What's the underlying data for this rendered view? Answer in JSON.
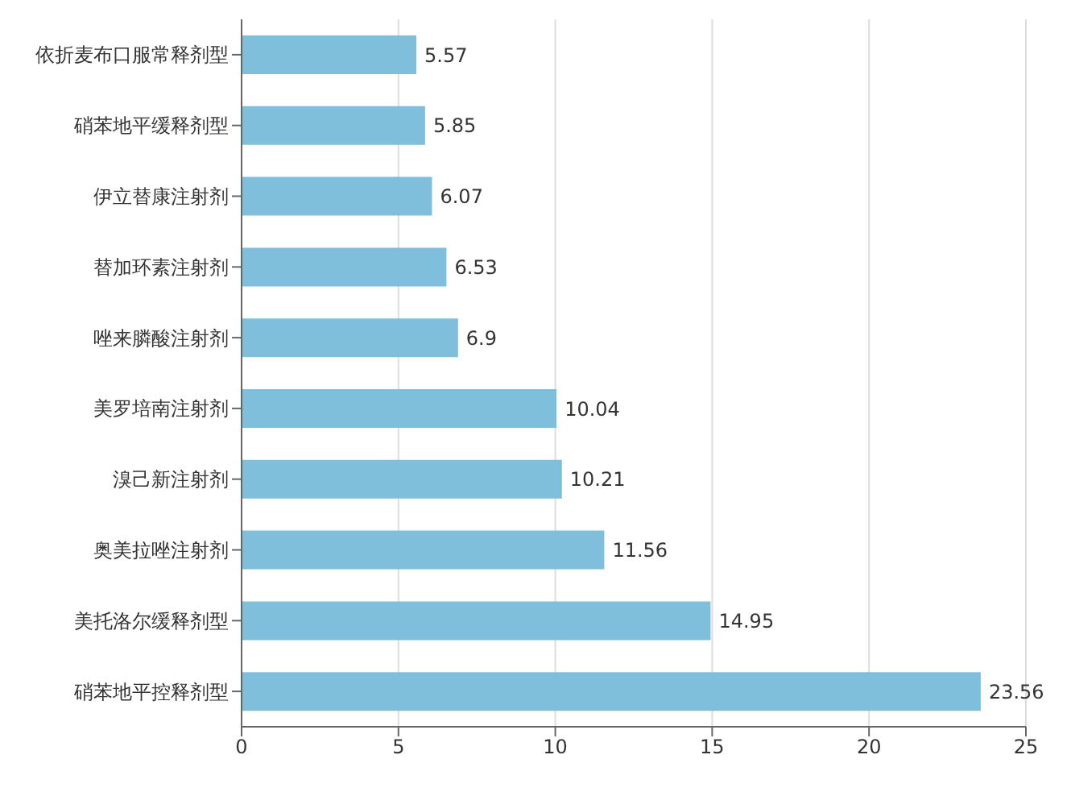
{
  "chart_data": {
    "type": "bar",
    "orientation": "horizontal",
    "categories": [
      "依折麦布口服常释剂型",
      "硝苯地平缓释剂型",
      "伊立替康注射剂",
      "替加环素注射剂",
      "唑来膦酸注射剂",
      "美罗培南注射剂",
      "溴己新注射剂",
      "奥美拉唑注射剂",
      "美托洛尔缓释剂型",
      "硝苯地平控释剂型"
    ],
    "values": [
      5.57,
      5.85,
      6.07,
      6.53,
      6.9,
      10.04,
      10.21,
      11.56,
      14.95,
      23.56
    ],
    "color": "#7fbfdc",
    "xlim": [
      0,
      25
    ],
    "xticks": [
      0,
      5,
      10,
      15,
      20,
      25
    ],
    "grid": "x",
    "data_labels": true
  }
}
